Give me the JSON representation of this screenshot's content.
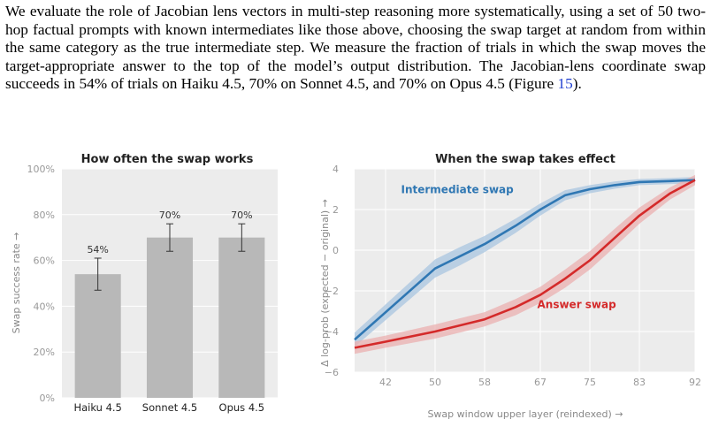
{
  "paragraph": {
    "before_link": "We evaluate the role of Jacobian lens vectors in multi-step reasoning more systematically, using a set of 50 two-hop factual prompts with known intermediates like those above, choosing the swap target at random from within the same category as the true intermediate step. We measure the fraction of trials in which the swap moves the target-appropriate answer to the top of the model’s output distribution. The Jacobian-lens coordinate swap succeeds in 54% of trials on Haiku 4.5, 70% on Sonnet 4.5, and 70% on Opus 4.5 (Figure ",
    "link_text": "15",
    "after_link": ")."
  },
  "chart_data": [
    {
      "type": "bar",
      "title": "How often the swap works",
      "xlabel": "",
      "ylabel": "Swap success rate →",
      "categories": [
        "Haiku 4.5",
        "Sonnet 4.5",
        "Opus 4.5"
      ],
      "values": [
        54,
        70,
        70
      ],
      "value_labels": [
        "54%",
        "70%",
        "70%"
      ],
      "error_low": [
        47,
        64,
        64
      ],
      "error_high": [
        61,
        76,
        76
      ],
      "ylim": [
        0,
        100
      ],
      "yticks": [
        0,
        20,
        40,
        60,
        80,
        100
      ],
      "ytick_labels": [
        "0%",
        "20%",
        "40%",
        "60%",
        "80%",
        "100%"
      ],
      "grid": true,
      "colors": {
        "bar": "#b8b8b8",
        "bg": "#ececec",
        "error": "#333333"
      }
    },
    {
      "type": "line",
      "title": "When the swap takes effect",
      "xlabel": "Swap window upper layer (reindexed) →",
      "ylabel": "Δ log-prob (expected − original) →",
      "xlim": [
        37,
        92
      ],
      "ylim": [
        -6,
        4
      ],
      "xticks": [
        42,
        50,
        58,
        67,
        75,
        83,
        92
      ],
      "yticks": [
        -6,
        -4,
        -2,
        0,
        2,
        4
      ],
      "grid": true,
      "series": [
        {
          "name": "Intermediate swap",
          "color": "#2f77b3",
          "band_color": "#a9c6e0",
          "x": [
            37,
            50,
            54,
            58,
            63,
            67,
            71,
            75,
            79,
            83,
            88,
            92
          ],
          "y": [
            -4.4,
            -0.9,
            -0.3,
            0.3,
            1.2,
            2.0,
            2.7,
            3.0,
            3.2,
            3.35,
            3.4,
            3.45
          ],
          "band": [
            0.35,
            0.45,
            0.45,
            0.4,
            0.35,
            0.3,
            0.25,
            0.2,
            0.18,
            0.15,
            0.15,
            0.15
          ]
        },
        {
          "name": "Answer swap",
          "color": "#d42a2a",
          "band_color": "#ebb0b0",
          "x": [
            37,
            42,
            50,
            58,
            63,
            67,
            71,
            75,
            79,
            83,
            88,
            92
          ],
          "y": [
            -4.8,
            -4.5,
            -4.0,
            -3.4,
            -2.8,
            -2.2,
            -1.4,
            -0.5,
            0.6,
            1.7,
            2.8,
            3.45
          ],
          "band": [
            0.3,
            0.3,
            0.35,
            0.35,
            0.4,
            0.4,
            0.45,
            0.45,
            0.45,
            0.4,
            0.3,
            0.25
          ]
        }
      ],
      "colors": {
        "bg": "#ececec"
      }
    }
  ]
}
